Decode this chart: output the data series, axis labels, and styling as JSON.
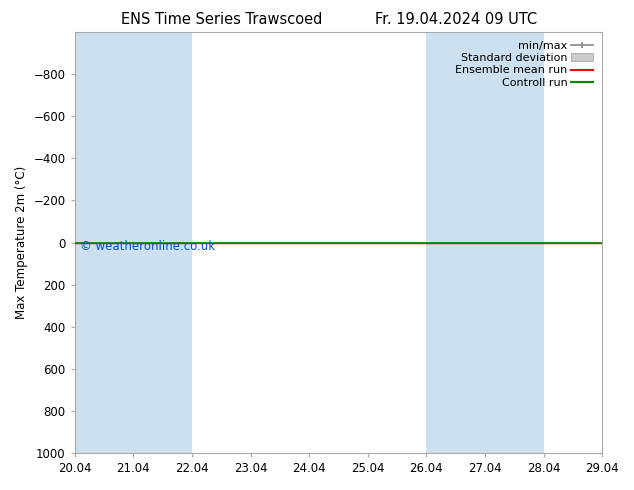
{
  "title_left": "ENS Time Series Trawscoed",
  "title_right": "Fr. 19.04.2024 09 UTC",
  "ylabel": "Max Temperature 2m (°C)",
  "ylim_bottom": 1000,
  "ylim_top": -1000,
  "yticks": [
    -800,
    -600,
    -400,
    -200,
    0,
    200,
    400,
    600,
    800,
    1000
  ],
  "xtick_positions": [
    0,
    1,
    2,
    3,
    4,
    5,
    6,
    7,
    8,
    9
  ],
  "xtick_labels": [
    "20.04",
    "21.04",
    "22.04",
    "23.04",
    "24.04",
    "25.04",
    "26.04",
    "27.04",
    "28.04",
    "29.04"
  ],
  "shaded_bands": [
    {
      "xstart": 0.0,
      "xend": 1.0
    },
    {
      "xstart": 1.0,
      "xend": 2.0
    },
    {
      "xstart": 6.0,
      "xend": 7.0
    },
    {
      "xstart": 7.0,
      "xend": 8.0
    }
  ],
  "shaded_color": "#cce0f0",
  "control_run_y": 0,
  "ensemble_mean_y": 0,
  "background_color": "#ffffff",
  "plot_bg_color": "#ffffff",
  "legend_labels": [
    "min/max",
    "Standard deviation",
    "Ensemble mean run",
    "Controll run"
  ],
  "legend_colors_line": [
    "#888888",
    "#aaaaaa",
    "#ff0000",
    "#008800"
  ],
  "copyright_text": "© weatheronline.co.uk",
  "copyright_color": "#0055cc",
  "green_line_color": "#008800",
  "red_line_color": "#ff0000",
  "spine_color": "#aaaaaa",
  "font_size": 8.5,
  "title_font_size": 10.5,
  "xlim_start": 0,
  "xlim_end": 9
}
